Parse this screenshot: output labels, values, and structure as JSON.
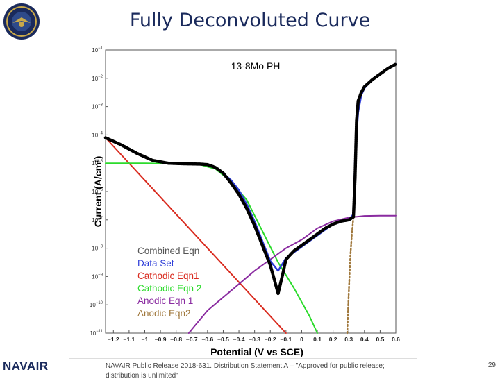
{
  "slide": {
    "title": "Fully Deconvoluted Curve",
    "brand": "NAVAIR",
    "footer": "NAVAIR Public Release 2018-631. Distribution Statement A – \"Approved for public release; distribution is unlimited\"",
    "page_number": "29"
  },
  "chart_data": {
    "type": "line",
    "title": "13-8Mo PH",
    "xlabel": "Potential (V vs SCE)",
    "ylabel": "Current (A/cm²)",
    "xlim": [
      -1.25,
      0.6
    ],
    "ylim_log10": [
      -11,
      -1
    ],
    "log_y": true,
    "grid": false,
    "legend_position": "bottom-left",
    "x_ticks": [
      -1.2,
      -1.1,
      -1.0,
      -0.9,
      -0.8,
      -0.7,
      -0.6,
      -0.5,
      -0.4,
      -0.3,
      -0.2,
      -0.1,
      0.0,
      0.1,
      0.2,
      0.3,
      0.4,
      0.5,
      0.6
    ],
    "x_tick_labels": [
      "−1.2",
      "−1.1",
      "−1",
      "−0.9",
      "−0.8",
      "−0.7",
      "−0.6",
      "−0.5",
      "−0.4",
      "−0.3",
      "−0.2",
      "−0.1",
      "0",
      "0.1",
      "0.2",
      "0.3",
      "0.4",
      "0.5",
      "0.6"
    ],
    "y_tick_exponents": [
      -1,
      -2,
      -3,
      -4,
      -5,
      -6,
      -7,
      -8,
      -9,
      -10,
      -11
    ],
    "series": [
      {
        "name": "Combined Eqn",
        "color": "#000000",
        "style": "dotted-thick",
        "x": [
          -1.25,
          -1.15,
          -1.05,
          -0.95,
          -0.85,
          -0.75,
          -0.65,
          -0.6,
          -0.55,
          -0.5,
          -0.45,
          -0.4,
          -0.35,
          -0.3,
          -0.25,
          -0.2,
          -0.18,
          -0.15,
          -0.12,
          -0.1,
          -0.05,
          0.0,
          0.05,
          0.1,
          0.15,
          0.2,
          0.25,
          0.3,
          0.33,
          0.34,
          0.35,
          0.36,
          0.38,
          0.4,
          0.45,
          0.5,
          0.55,
          0.6
        ],
        "log_y": [
          -4.1,
          -4.35,
          -4.65,
          -4.9,
          -5.0,
          -5.02,
          -5.03,
          -5.05,
          -5.15,
          -5.35,
          -5.7,
          -6.1,
          -6.6,
          -7.2,
          -7.9,
          -8.6,
          -9.0,
          -9.6,
          -8.9,
          -8.4,
          -8.1,
          -7.9,
          -7.7,
          -7.5,
          -7.3,
          -7.15,
          -7.05,
          -7.0,
          -6.9,
          -5.5,
          -3.5,
          -2.8,
          -2.5,
          -2.3,
          -2.05,
          -1.85,
          -1.65,
          -1.5
        ]
      },
      {
        "name": "Data Set",
        "color": "#2b3bd8",
        "style": "solid",
        "x": [
          -0.6,
          -0.55,
          -0.5,
          -0.45,
          -0.4,
          -0.35,
          -0.3,
          -0.25,
          -0.2,
          -0.15,
          -0.1,
          -0.05,
          0.0,
          0.05,
          0.1,
          0.15,
          0.2,
          0.25,
          0.3,
          0.33,
          0.34,
          0.36,
          0.38,
          0.4,
          0.45,
          0.5,
          0.55,
          0.6
        ],
        "log_y": [
          -5.05,
          -5.15,
          -5.35,
          -5.6,
          -5.95,
          -6.45,
          -7.05,
          -7.75,
          -8.45,
          -8.8,
          -8.35,
          -8.15,
          -7.95,
          -7.75,
          -7.55,
          -7.35,
          -7.15,
          -7.05,
          -7.0,
          -6.8,
          -4.8,
          -3.2,
          -2.6,
          -2.35,
          -2.05,
          -1.85,
          -1.65,
          -1.5
        ]
      },
      {
        "name": "Cathodic Eqn1",
        "color": "#d92b1f",
        "style": "solid",
        "x": [
          -1.25,
          -0.1
        ],
        "log_y": [
          -4.1,
          -11.0
        ]
      },
      {
        "name": "Cathodic Eqn 2",
        "color": "#2bdb2b",
        "style": "solid",
        "x": [
          -1.25,
          -1.0,
          -0.75,
          -0.65,
          -0.55,
          -0.45,
          -0.35,
          -0.25,
          -0.15,
          -0.05,
          0.05,
          0.1
        ],
        "log_y": [
          -5.0,
          -5.0,
          -5.02,
          -5.05,
          -5.2,
          -5.65,
          -6.3,
          -7.4,
          -8.5,
          -9.4,
          -10.4,
          -11.0
        ]
      },
      {
        "name": "Anodic Eqn 1",
        "color": "#8a2ba0",
        "style": "solid",
        "x": [
          -0.72,
          -0.6,
          -0.45,
          -0.3,
          -0.2,
          -0.1,
          0.0,
          0.1,
          0.2,
          0.3,
          0.4,
          0.5,
          0.6
        ],
        "log_y": [
          -11.0,
          -10.2,
          -9.5,
          -8.8,
          -8.4,
          -8.0,
          -7.7,
          -7.3,
          -7.05,
          -6.92,
          -6.86,
          -6.85,
          -6.85
        ]
      },
      {
        "name": "Anodic Eqn2",
        "color": "#a0783c",
        "style": "dotted",
        "x": [
          0.29,
          0.3,
          0.31,
          0.32,
          0.33
        ],
        "log_y": [
          -11.0,
          -9.6,
          -8.3,
          -7.5,
          -6.9
        ]
      }
    ]
  }
}
